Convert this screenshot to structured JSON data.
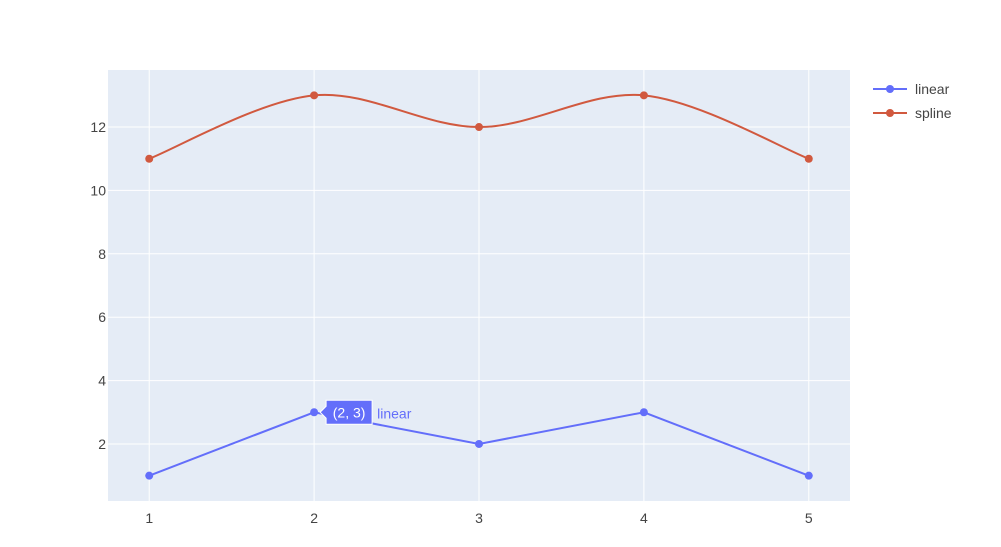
{
  "chart_data": {
    "type": "line",
    "x": [
      1,
      2,
      3,
      4,
      5
    ],
    "xlim": [
      0.75,
      5.25
    ],
    "ylim": [
      0.2,
      13.8
    ],
    "x_ticks": [
      1,
      2,
      3,
      4,
      5
    ],
    "y_ticks": [
      2,
      4,
      6,
      8,
      10,
      12
    ],
    "grid": true,
    "legend_position": "top-right",
    "series": [
      {
        "name": "linear",
        "values": [
          1,
          3,
          2,
          3,
          1
        ],
        "color": "#636efa",
        "shape": "linear"
      },
      {
        "name": "spline",
        "values": [
          11,
          13,
          12,
          13,
          11
        ],
        "color": "#d1593f",
        "shape": "spline"
      }
    ],
    "hover": {
      "series_index": 0,
      "point_index": 1,
      "label": "(2, 3)",
      "name": "linear"
    }
  },
  "colors": {
    "plot_bg": "#e5ecf6",
    "grid": "#ffffff",
    "tick_text": "#444444"
  }
}
